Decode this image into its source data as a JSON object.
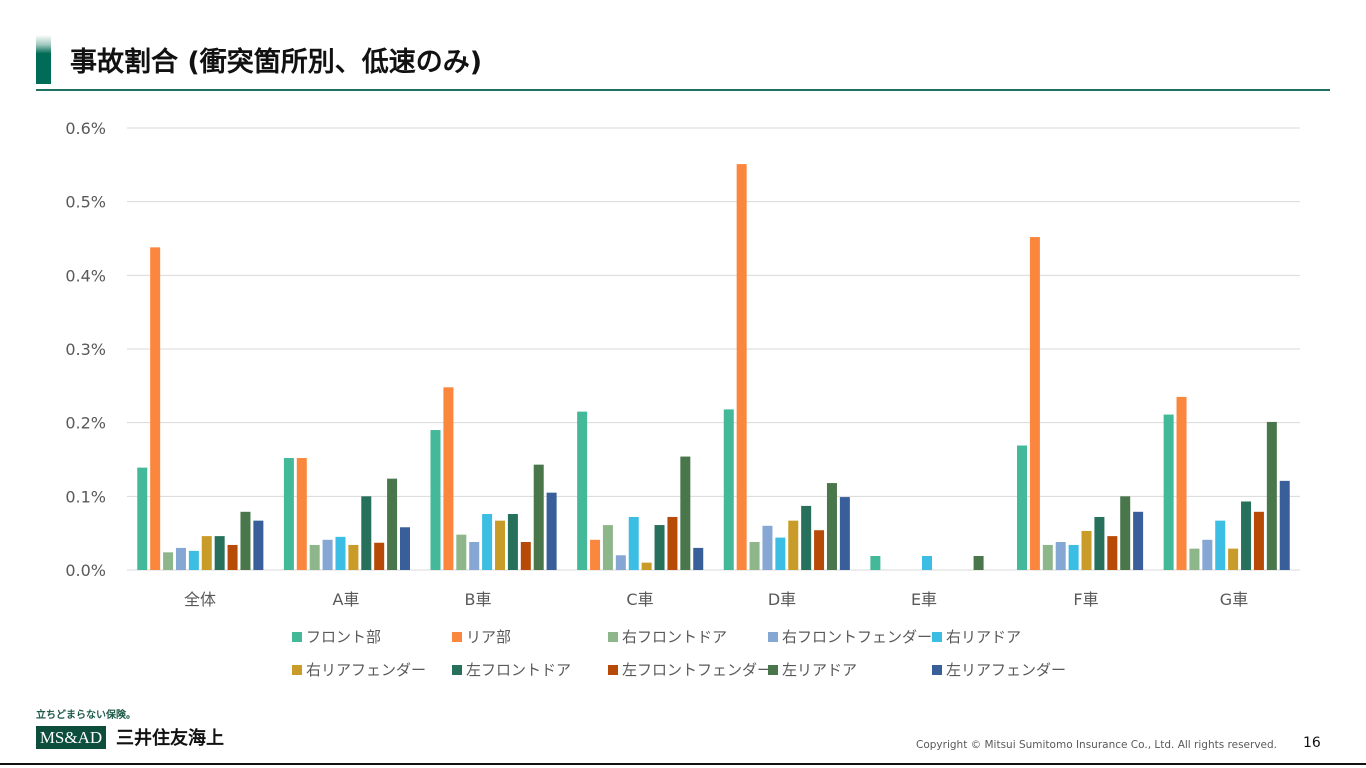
{
  "header": {
    "title": "事故割合 (衝突箇所別、低速のみ)"
  },
  "colors": {
    "accent": "#006b56",
    "series": [
      "#43b99a",
      "#fb873e",
      "#8db78a",
      "#86a6d4",
      "#3bbde4",
      "#c99c29",
      "#26705c",
      "#b84a08",
      "#4a764b",
      "#385f99"
    ]
  },
  "chart_data": {
    "type": "bar",
    "title": "",
    "xlabel": "",
    "ylabel": "",
    "ylim": [
      0,
      0.6
    ],
    "yticks": [
      "0.0%",
      "0.1%",
      "0.2%",
      "0.3%",
      "0.4%",
      "0.5%",
      "0.6%"
    ],
    "grid": true,
    "legend_position": "bottom",
    "unit": "%",
    "categories": [
      "全体",
      "A車",
      "B車",
      "C車",
      "D車",
      "E車",
      "F車",
      "G車"
    ],
    "series": [
      {
        "name": "フロント部",
        "values": [
          0.139,
          0.152,
          0.19,
          0.215,
          0.218,
          0.019,
          0.169,
          0.211
        ]
      },
      {
        "name": "リア部",
        "values": [
          0.438,
          0.152,
          0.248,
          0.041,
          0.551,
          0,
          0.452,
          0.235
        ]
      },
      {
        "name": "右フロントドア",
        "values": [
          0.024,
          0.034,
          0.048,
          0.061,
          0.038,
          0,
          0.034,
          0.029
        ]
      },
      {
        "name": "右フロントフェンダー",
        "values": [
          0.03,
          0.041,
          0.038,
          0.02,
          0.06,
          0,
          0.038,
          0.041
        ]
      },
      {
        "name": "右リアドア",
        "values": [
          0.026,
          0.045,
          0.076,
          0.072,
          0.044,
          0.019,
          0.034,
          0.067
        ]
      },
      {
        "name": "右リアフェンダー",
        "values": [
          0.046,
          0.034,
          0.067,
          0.01,
          0.067,
          0,
          0.053,
          0.029
        ]
      },
      {
        "name": "左フロントドア",
        "values": [
          0.046,
          0.1,
          0.076,
          0.061,
          0.087,
          0,
          0.072,
          0.093
        ]
      },
      {
        "name": "左フロントフェンダー",
        "values": [
          0.034,
          0.037,
          0.038,
          0.072,
          0.054,
          0,
          0.046,
          0.079
        ]
      },
      {
        "name": "左リアドア",
        "values": [
          0.079,
          0.124,
          0.143,
          0.154,
          0.118,
          0.019,
          0.1,
          0.201
        ]
      },
      {
        "name": "左リアフェンダー",
        "values": [
          0.067,
          0.058,
          0.105,
          0.03,
          0.099,
          0,
          0.079,
          0.121
        ]
      }
    ]
  },
  "footer": {
    "logo_tagline": "立ちどまらない保険。",
    "logo_mark": "MS&AD",
    "logo_name": "三井住友海上",
    "copyright": "Copyright © Mitsui Sumitomo Insurance Co., Ltd. All rights reserved.",
    "page_number": "16"
  }
}
